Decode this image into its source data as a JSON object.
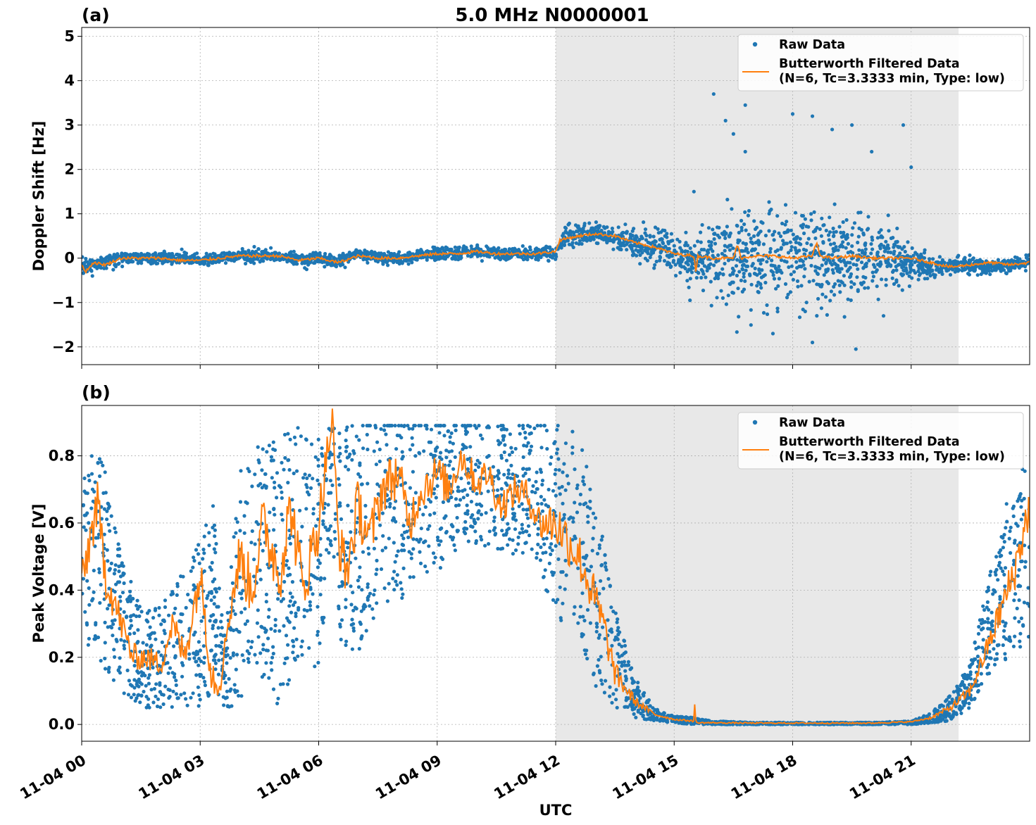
{
  "title": "5.0 MHz N0000001",
  "colors": {
    "raw": "#1f77b4",
    "filtered": "#ff7f0e",
    "shade": "#e8e8e8",
    "grid": "#b0b0b0"
  },
  "legend": {
    "raw": "Raw Data",
    "filtered_line1": "Butterworth Filtered Data",
    "filtered_line2": "(N=6, Tc=3.3333 min, Type: low)",
    "placement": "top-right"
  },
  "chart_data": [
    {
      "type": "scatter",
      "panel": "(a)",
      "title": "5.0 MHz N0000001",
      "xlabel": "",
      "ylabel": "Doppler Shift [Hz]",
      "xlim_hours": [
        0,
        24
      ],
      "ylim": [
        -2.4,
        5.2
      ],
      "yticks": [
        -2,
        -1,
        0,
        1,
        2,
        3,
        4,
        5
      ],
      "ytick_labels": [
        "−2",
        "−1",
        "0",
        "1",
        "2",
        "3",
        "4",
        "5"
      ],
      "grid": true,
      "shaded_span_hours": [
        12.0,
        22.2
      ],
      "series": [
        {
          "name": "Raw Data",
          "style": "points",
          "x": [
            0,
            0.5,
            1,
            1.5,
            2,
            2.5,
            3,
            3.5,
            4,
            4.5,
            5,
            5.5,
            6,
            6.5,
            7,
            7.5,
            8,
            8.5,
            9,
            9.5,
            10,
            10.5,
            11,
            11.5,
            12,
            12.3,
            12.6,
            13,
            13.5,
            14,
            14.5,
            15,
            15.5,
            16,
            16.5,
            17,
            17.5,
            18,
            18.5,
            19,
            19.5,
            20,
            20.5,
            21,
            21.5,
            22,
            22.5,
            23,
            23.5,
            24
          ],
          "y": [
            -0.2,
            -0.1,
            0,
            0,
            0,
            0,
            -0.05,
            0,
            0.05,
            0.05,
            0.05,
            -0.05,
            0,
            -0.1,
            0.1,
            0,
            0,
            0.05,
            0.1,
            0.1,
            0.15,
            0.1,
            0.1,
            0.1,
            0.15,
            0.5,
            0.55,
            0.55,
            0.45,
            0.3,
            0.25,
            0.1,
            0,
            0.05,
            0,
            0.05,
            0.05,
            0,
            0,
            0,
            0,
            0,
            0,
            -0.1,
            -0.2,
            -0.2,
            -0.15,
            -0.2,
            -0.15,
            -0.1
          ],
          "spread": [
            0.15,
            0.12,
            0.12,
            0.12,
            0.12,
            0.12,
            0.12,
            0.12,
            0.12,
            0.12,
            0.12,
            0.12,
            0.12,
            0.12,
            0.12,
            0.12,
            0.12,
            0.12,
            0.12,
            0.12,
            0.12,
            0.12,
            0.12,
            0.12,
            0.15,
            0.2,
            0.2,
            0.2,
            0.2,
            0.25,
            0.3,
            0.35,
            0.45,
            0.7,
            0.9,
            1.0,
            1.0,
            1.0,
            1.0,
            0.95,
            0.9,
            0.8,
            0.6,
            0.35,
            0.2,
            0.15,
            0.15,
            0.15,
            0.15,
            0.15
          ]
        },
        {
          "name": "Butterworth Filtered Data (N=6, Tc=3.3333 min, Type: low)",
          "style": "line",
          "x": [
            0,
            0.1,
            0.3,
            0.6,
            1,
            1.5,
            2,
            2.5,
            3,
            3.5,
            4,
            4.5,
            5,
            5.5,
            6,
            6.5,
            7,
            7.5,
            8,
            8.5,
            9,
            9.5,
            10,
            10.5,
            11,
            11.5,
            12,
            12.1,
            12.3,
            12.6,
            13,
            13.5,
            14,
            14.5,
            15,
            15.5,
            15.55,
            15.6,
            16,
            16.5,
            16.6,
            16.7,
            17,
            17.5,
            18,
            18.5,
            18.6,
            18.7,
            19,
            19.5,
            20,
            20.5,
            21,
            21.5,
            22,
            22.5,
            23,
            23.5,
            24
          ],
          "y": [
            -0.15,
            -0.3,
            -0.1,
            -0.15,
            0,
            0,
            0,
            -0.05,
            -0.05,
            0,
            0.05,
            0.05,
            0.05,
            -0.05,
            0,
            -0.1,
            0.05,
            0,
            0,
            0.05,
            0.1,
            0.1,
            0.15,
            0.1,
            0.1,
            0.1,
            0.15,
            0.4,
            0.45,
            0.5,
            0.55,
            0.5,
            0.35,
            0.25,
            0.1,
            0.05,
            -0.3,
            0.05,
            0,
            0,
            0.3,
            0,
            0.05,
            0.05,
            0,
            0.05,
            0.35,
            0.05,
            0,
            0.05,
            0,
            0,
            0,
            -0.1,
            -0.2,
            -0.15,
            -0.1,
            -0.15,
            -0.1
          ]
        }
      ],
      "outliers": [
        [
          15.4,
          -0.95
        ],
        [
          15.5,
          1.5
        ],
        [
          16,
          3.7
        ],
        [
          16.3,
          3.1
        ],
        [
          16.5,
          2.8
        ],
        [
          16.8,
          3.45
        ],
        [
          16.8,
          2.4
        ],
        [
          17.5,
          -1.7
        ],
        [
          18,
          3.25
        ],
        [
          18.5,
          3.2
        ],
        [
          18.5,
          -1.9
        ],
        [
          19,
          2.9
        ],
        [
          19.5,
          3.0
        ],
        [
          19.6,
          -2.05
        ],
        [
          20,
          2.4
        ],
        [
          20.8,
          3.0
        ],
        [
          21,
          2.05
        ],
        [
          20.3,
          -1.3
        ]
      ]
    },
    {
      "type": "scatter",
      "panel": "(b)",
      "title": "",
      "xlabel": "UTC",
      "ylabel": "Peak Voltage [V]",
      "xlim_hours": [
        0,
        24
      ],
      "ylim": [
        -0.05,
        0.95
      ],
      "yticks": [
        0.0,
        0.2,
        0.4,
        0.6,
        0.8
      ],
      "ytick_labels": [
        "0.0",
        "0.2",
        "0.4",
        "0.6",
        "0.8"
      ],
      "xticks_hours": [
        0,
        3,
        6,
        9,
        12,
        15,
        18,
        21
      ],
      "xtick_labels": [
        "11-04 00",
        "11-04 03",
        "11-04 06",
        "11-04 09",
        "11-04 12",
        "11-04 15",
        "11-04 18",
        "11-04 21"
      ],
      "grid": true,
      "shaded_span_hours": [
        12.0,
        22.2
      ],
      "series": [
        {
          "name": "Raw Data",
          "style": "points",
          "x": [
            0,
            0.3,
            0.6,
            1,
            1.5,
            2,
            2.5,
            3,
            3.3,
            3.6,
            4,
            4.5,
            5,
            5.5,
            6,
            6.3,
            6.6,
            7,
            7.5,
            8,
            8.5,
            9,
            9.5,
            10,
            10.5,
            11,
            11.5,
            12,
            12.5,
            13,
            13.5,
            14,
            14.5,
            15,
            15.5,
            16,
            17,
            18,
            19,
            20,
            21,
            21.5,
            22,
            22.5,
            23,
            23.5,
            24
          ],
          "y": [
            0.5,
            0.55,
            0.45,
            0.3,
            0.2,
            0.2,
            0.25,
            0.3,
            0.4,
            0.15,
            0.4,
            0.5,
            0.45,
            0.55,
            0.5,
            0.7,
            0.55,
            0.55,
            0.65,
            0.65,
            0.7,
            0.7,
            0.72,
            0.72,
            0.72,
            0.7,
            0.7,
            0.6,
            0.6,
            0.4,
            0.2,
            0.08,
            0.03,
            0.015,
            0.01,
            0.005,
            0.003,
            0.003,
            0.003,
            0.003,
            0.005,
            0.02,
            0.05,
            0.12,
            0.3,
            0.45,
            0.55
          ],
          "spread": [
            0.3,
            0.3,
            0.3,
            0.2,
            0.15,
            0.15,
            0.2,
            0.25,
            0.3,
            0.1,
            0.35,
            0.35,
            0.4,
            0.35,
            0.35,
            0.2,
            0.35,
            0.35,
            0.3,
            0.3,
            0.25,
            0.25,
            0.2,
            0.2,
            0.2,
            0.2,
            0.2,
            0.3,
            0.3,
            0.3,
            0.15,
            0.06,
            0.02,
            0.01,
            0.01,
            0.005,
            0.003,
            0.003,
            0.003,
            0.003,
            0.005,
            0.015,
            0.04,
            0.07,
            0.15,
            0.25,
            0.3
          ]
        },
        {
          "name": "Butterworth Filtered Data (N=6, Tc=3.3333 min, Type: low)",
          "style": "line",
          "x": [
            0,
            0.2,
            0.4,
            0.6,
            1,
            1.3,
            1.6,
            2,
            2.3,
            2.6,
            3,
            3.3,
            3.5,
            3.7,
            4,
            4.3,
            4.6,
            5,
            5.3,
            5.6,
            6,
            6.2,
            6.35,
            6.5,
            6.7,
            7,
            7.3,
            7.6,
            8,
            8.3,
            8.6,
            9,
            9.3,
            9.6,
            10,
            10.3,
            10.6,
            11,
            11.3,
            11.6,
            12,
            12.3,
            12.6,
            12.9,
            13.2,
            13.5,
            14,
            14.5,
            15,
            15.5,
            15.52,
            15.55,
            16,
            17,
            18,
            19,
            20,
            21,
            21.5,
            22,
            22.5,
            23,
            23.3,
            23.6,
            24
          ],
          "y": [
            0.4,
            0.55,
            0.65,
            0.45,
            0.3,
            0.2,
            0.2,
            0.18,
            0.3,
            0.2,
            0.45,
            0.15,
            0.12,
            0.3,
            0.5,
            0.4,
            0.6,
            0.45,
            0.65,
            0.4,
            0.6,
            0.8,
            0.9,
            0.55,
            0.45,
            0.65,
            0.55,
            0.7,
            0.75,
            0.6,
            0.7,
            0.75,
            0.7,
            0.8,
            0.72,
            0.75,
            0.65,
            0.7,
            0.68,
            0.6,
            0.6,
            0.55,
            0.5,
            0.4,
            0.3,
            0.15,
            0.07,
            0.03,
            0.015,
            0.01,
            0.06,
            0.005,
            0.005,
            0.004,
            0.004,
            0.004,
            0.004,
            0.008,
            0.02,
            0.05,
            0.1,
            0.25,
            0.35,
            0.45,
            0.65
          ]
        }
      ]
    }
  ]
}
